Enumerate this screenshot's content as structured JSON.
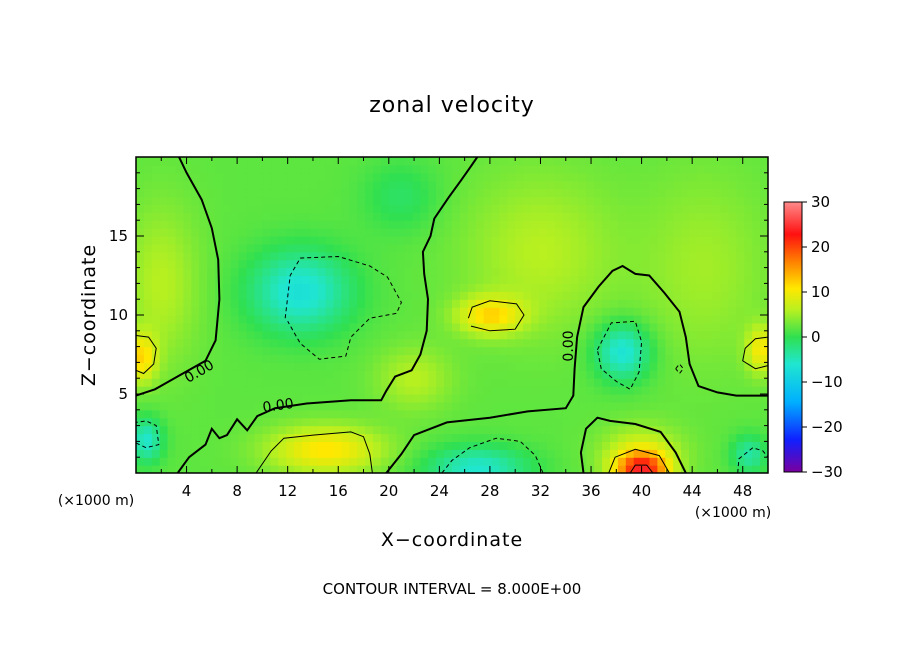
{
  "chart_data": {
    "type": "heatmap",
    "title": "zonal velocity",
    "xlabel": "X−coordinate",
    "ylabel": "Z−coordinate",
    "x_unit_left": "(×1000 m)",
    "x_unit_right": "(×1000 m)",
    "xlim": [
      0,
      50
    ],
    "ylim": [
      0,
      20
    ],
    "x_ticks": [
      4,
      8,
      12,
      16,
      20,
      24,
      28,
      32,
      36,
      40,
      44,
      48
    ],
    "y_ticks": [
      5,
      10,
      15
    ],
    "colorbar": {
      "min": -30,
      "max": 30,
      "ticks": [
        30,
        20,
        10,
        0,
        -10,
        -20,
        -30
      ],
      "tick_labels": [
        "30",
        "20",
        "10",
        "0",
        "−10",
        "−20",
        "−30"
      ],
      "colors": [
        "#7a00a0",
        "#1020ff",
        "#00b0ff",
        "#20e6d0",
        "#30e050",
        "#b8f020",
        "#ffe800",
        "#ff8000",
        "#ff1010",
        "#ff8a8a"
      ]
    },
    "contour_interval_text": "CONTOUR INTERVAL = 8.000E+00",
    "contour_level_labels": [
      "0.00",
      "0.00",
      "0.00"
    ],
    "field": {
      "background": 2,
      "blobs": [
        {
          "x": 13,
          "y": 11.5,
          "sx": 4,
          "sy": 2.6,
          "v": -9
        },
        {
          "x": 38.5,
          "y": 7.7,
          "sx": 2.2,
          "sy": 1.8,
          "v": -9
        },
        {
          "x": 27,
          "y": 0.3,
          "sx": 4,
          "sy": 1.4,
          "v": -8
        },
        {
          "x": 0.8,
          "y": 2.1,
          "sx": 1.3,
          "sy": 1.4,
          "v": -8
        },
        {
          "x": 48.5,
          "y": 1.2,
          "sx": 1.4,
          "sy": 1.2,
          "v": -6
        },
        {
          "x": 21,
          "y": 17.5,
          "sx": 3,
          "sy": 2.2,
          "v": -3
        },
        {
          "x": 15,
          "y": 1.5,
          "sx": 4.5,
          "sy": 1.5,
          "v": 9
        },
        {
          "x": 40,
          "y": 0.2,
          "sx": 2,
          "sy": 1.1,
          "v": 18
        },
        {
          "x": 40,
          "y": 1.2,
          "sx": 3.2,
          "sy": 1.8,
          "v": 6
        },
        {
          "x": 0.4,
          "y": 7.3,
          "sx": 1.2,
          "sy": 1.5,
          "v": 9
        },
        {
          "x": 49.5,
          "y": 7.8,
          "sx": 1.2,
          "sy": 1.5,
          "v": 8
        },
        {
          "x": 28,
          "y": 10,
          "sx": 2.6,
          "sy": 1.2,
          "v": 9
        },
        {
          "x": 2,
          "y": 12,
          "sx": 3,
          "sy": 5,
          "v": 4
        },
        {
          "x": 32,
          "y": 14,
          "sx": 6,
          "sy": 5,
          "v": 4
        },
        {
          "x": 45,
          "y": 13,
          "sx": 5,
          "sy": 6,
          "v": 3
        },
        {
          "x": 22,
          "y": 6,
          "sx": 3,
          "sy": 2,
          "v": 4
        }
      ]
    },
    "contours": {
      "zero": [
        [
          [
            0,
            4.9
          ],
          [
            1.5,
            5.3
          ],
          [
            3.5,
            6.2
          ],
          [
            5.5,
            7.1
          ],
          [
            6.3,
            8.4
          ],
          [
            6.6,
            11
          ],
          [
            6.5,
            13.5
          ],
          [
            6,
            15.5
          ],
          [
            5.2,
            17.3
          ],
          [
            4,
            19
          ],
          [
            3.4,
            20
          ]
        ],
        [
          [
            3.3,
            0
          ],
          [
            4.2,
            1
          ],
          [
            5.5,
            1.8
          ],
          [
            6,
            2.8
          ],
          [
            6.6,
            2.2
          ],
          [
            7.2,
            2.4
          ],
          [
            8,
            3.4
          ],
          [
            8.8,
            2.7
          ],
          [
            9.6,
            3.6
          ],
          [
            11,
            4.1
          ],
          [
            13.5,
            4.4
          ],
          [
            17,
            4.6
          ],
          [
            19.4,
            4.6
          ],
          [
            19.8,
            5.2
          ],
          [
            20.5,
            6.1
          ],
          [
            21.8,
            6.5
          ],
          [
            22.5,
            7.5
          ],
          [
            23,
            9
          ],
          [
            23.1,
            11
          ],
          [
            22.8,
            12.6
          ],
          [
            22.7,
            14
          ],
          [
            23.3,
            15
          ],
          [
            23.6,
            16.1
          ],
          [
            24.7,
            17.4
          ],
          [
            25.7,
            18.5
          ],
          [
            26.4,
            19.3
          ],
          [
            27,
            20
          ]
        ],
        [
          [
            19.8,
            0
          ],
          [
            21,
            1.2
          ],
          [
            22,
            2.4
          ],
          [
            24.6,
            3.2
          ],
          [
            28,
            3.5
          ],
          [
            31,
            3.9
          ],
          [
            34,
            4.1
          ],
          [
            34.6,
            4.9
          ],
          [
            34.7,
            6.6
          ],
          [
            34.9,
            8.6
          ],
          [
            35.4,
            10.5
          ],
          [
            36.6,
            11.8
          ],
          [
            37.7,
            12.8
          ],
          [
            38.5,
            13.1
          ],
          [
            39.5,
            12.6
          ],
          [
            40.6,
            12.5
          ],
          [
            41.8,
            11.4
          ],
          [
            43,
            10.2
          ],
          [
            43.5,
            8.6
          ],
          [
            43.8,
            6.9
          ],
          [
            44.5,
            5.5
          ],
          [
            46,
            5.1
          ],
          [
            47.5,
            4.9
          ],
          [
            49,
            4.9
          ],
          [
            50,
            4.9
          ]
        ],
        [
          [
            35.4,
            0
          ],
          [
            35.2,
            1.3
          ],
          [
            35.6,
            2.8
          ],
          [
            36.5,
            3.5
          ],
          [
            37.5,
            3.3
          ],
          [
            39.5,
            3.1
          ],
          [
            41.5,
            2.6
          ],
          [
            42.7,
            1.3
          ],
          [
            43.5,
            0
          ]
        ]
      ],
      "positive": [
        [
          [
            0,
            6.5
          ],
          [
            0.6,
            6.3
          ],
          [
            1.4,
            6.9
          ],
          [
            1.6,
            7.9
          ],
          [
            1,
            8.6
          ],
          [
            0,
            8.7
          ]
        ],
        [
          [
            26.5,
            9.3
          ],
          [
            28,
            9
          ],
          [
            30,
            9.1
          ],
          [
            30.7,
            10
          ],
          [
            30.1,
            10.7
          ],
          [
            28,
            10.9
          ],
          [
            26.6,
            10.5
          ],
          [
            26.3,
            9.8
          ]
        ],
        [
          [
            50,
            6.8
          ],
          [
            49,
            6.6
          ],
          [
            48,
            7.1
          ],
          [
            48.2,
            7.9
          ],
          [
            49,
            8.5
          ],
          [
            50,
            8.6
          ]
        ],
        [
          [
            9.5,
            0
          ],
          [
            10.7,
            1.4
          ],
          [
            11.7,
            2.2
          ],
          [
            14,
            2.4
          ],
          [
            17,
            2.6
          ],
          [
            18,
            2.3
          ],
          [
            18.5,
            1.2
          ],
          [
            18.7,
            0
          ]
        ],
        [
          [
            37.4,
            0
          ],
          [
            37.9,
            1
          ],
          [
            39.5,
            1.5
          ],
          [
            41.4,
            1.1
          ],
          [
            42.2,
            0
          ]
        ],
        [
          [
            39.1,
            0
          ],
          [
            39.5,
            0.5
          ],
          [
            40.4,
            0.5
          ],
          [
            40.9,
            0
          ]
        ]
      ],
      "negative": [
        [
          [
            11.8,
            9.8
          ],
          [
            12.2,
            12.5
          ],
          [
            13,
            13.6
          ],
          [
            16,
            13.7
          ],
          [
            18.5,
            13.1
          ],
          [
            19.9,
            12.4
          ],
          [
            21,
            10.8
          ],
          [
            20.6,
            10.1
          ],
          [
            18.5,
            9.8
          ],
          [
            17,
            8.6
          ],
          [
            16.6,
            7.4
          ],
          [
            14.5,
            7.2
          ],
          [
            13,
            8.2
          ],
          [
            12,
            9.6
          ]
        ],
        [
          [
            36.5,
            7.8
          ],
          [
            37.6,
            9.5
          ],
          [
            39.5,
            9.6
          ],
          [
            40,
            8.3
          ],
          [
            39.8,
            6.4
          ],
          [
            39.1,
            5.3
          ],
          [
            38,
            5.8
          ],
          [
            36.8,
            6.6
          ],
          [
            36.5,
            7.8
          ]
        ],
        [
          [
            24.2,
            0
          ],
          [
            25,
            0.8
          ],
          [
            26.4,
            1.6
          ],
          [
            28.5,
            2.2
          ],
          [
            30.4,
            2
          ],
          [
            31.6,
            1.1
          ],
          [
            32.2,
            0
          ]
        ],
        [
          [
            0,
            1.9
          ],
          [
            0.8,
            1.6
          ],
          [
            1.8,
            1.8
          ],
          [
            1.6,
            3
          ],
          [
            0.8,
            3.3
          ],
          [
            0,
            3.2
          ]
        ],
        [
          [
            47.6,
            0
          ],
          [
            47.7,
            0.9
          ],
          [
            48.8,
            1.6
          ],
          [
            49.6,
            1.4
          ],
          [
            50,
            1
          ]
        ],
        [
          [
            42.7,
            6.6
          ],
          [
            43,
            6.9
          ],
          [
            43.3,
            6.6
          ],
          [
            43,
            6.3
          ],
          [
            42.7,
            6.6
          ]
        ]
      ]
    }
  }
}
